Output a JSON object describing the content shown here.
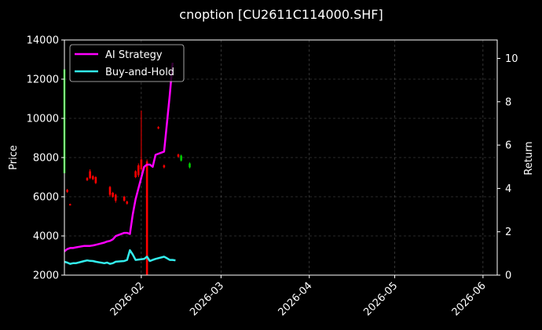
{
  "chart_data": {
    "type": "line",
    "title": "cnoption [CU2611C114000.SHF]",
    "ylabel": "Price",
    "y2label": "Return",
    "ylim": [
      2000,
      14000
    ],
    "y2lim": [
      0,
      10.85
    ],
    "xlim": [
      "2026-01-05",
      "2026-06-06"
    ],
    "grid": true,
    "legend_position": "top-left",
    "x_ticks": [
      "2026-02",
      "2026-03",
      "2026-04",
      "2026-05",
      "2026-06"
    ],
    "y_ticks": [
      2000,
      4000,
      6000,
      8000,
      10000,
      12000,
      14000
    ],
    "y2_ticks": [
      0,
      2,
      4,
      6,
      8,
      10
    ],
    "series": [
      {
        "name": "AI Strategy",
        "color": "#ff00ff",
        "axis": "right",
        "x": [
          "2026-01-05",
          "2026-01-06",
          "2026-01-07",
          "2026-01-08",
          "2026-01-09",
          "2026-01-12",
          "2026-01-13",
          "2026-01-14",
          "2026-01-15",
          "2026-01-16",
          "2026-01-19",
          "2026-01-20",
          "2026-01-21",
          "2026-01-22",
          "2026-01-23",
          "2026-01-26",
          "2026-01-27",
          "2026-01-28",
          "2026-01-29",
          "2026-01-30",
          "2026-02-02",
          "2026-02-03",
          "2026-02-04",
          "2026-02-05",
          "2026-02-06",
          "2026-02-09",
          "2026-02-10",
          "2026-02-11",
          "2026-02-12"
        ],
        "values": [
          1.1,
          1.2,
          1.25,
          1.25,
          1.28,
          1.35,
          1.35,
          1.35,
          1.37,
          1.4,
          1.5,
          1.55,
          1.58,
          1.65,
          1.8,
          1.95,
          1.95,
          1.9,
          2.8,
          3.5,
          5.0,
          5.1,
          5.1,
          5.0,
          5.55,
          5.7,
          7.0,
          8.3,
          9.8
        ]
      },
      {
        "name": "Buy-and-Hold",
        "color": "#33eeee",
        "axis": "right",
        "x": [
          "2026-01-05",
          "2026-01-06",
          "2026-01-07",
          "2026-01-08",
          "2026-01-09",
          "2026-01-12",
          "2026-01-13",
          "2026-01-14",
          "2026-01-15",
          "2026-01-16",
          "2026-01-19",
          "2026-01-20",
          "2026-01-21",
          "2026-01-22",
          "2026-01-23",
          "2026-01-26",
          "2026-01-27",
          "2026-01-28",
          "2026-01-29",
          "2026-01-30",
          "2026-02-02",
          "2026-02-03",
          "2026-02-04",
          "2026-02-05",
          "2026-02-06",
          "2026-02-09",
          "2026-02-10",
          "2026-02-11",
          "2026-02-12",
          "2026-02-13"
        ],
        "values": [
          0.62,
          0.58,
          0.52,
          0.55,
          0.55,
          0.65,
          0.68,
          0.66,
          0.65,
          0.62,
          0.55,
          0.58,
          0.52,
          0.55,
          0.62,
          0.65,
          0.7,
          1.15,
          0.95,
          0.7,
          0.75,
          0.85,
          0.65,
          0.7,
          0.75,
          0.85,
          0.78,
          0.7,
          0.7,
          0.68
        ]
      }
    ],
    "candles": [
      {
        "x": "2026-01-05",
        "open": 12500,
        "close": 7200,
        "high": 12800,
        "low": 7000,
        "color": "#00cc00"
      },
      {
        "x": "2026-01-06",
        "open": 6350,
        "close": 6250,
        "high": 6400,
        "low": 6200,
        "color": "#ff0000"
      },
      {
        "x": "2026-01-07",
        "open": 5620,
        "close": 5580,
        "high": 5650,
        "low": 5550,
        "color": "#ff0000"
      },
      {
        "x": "2026-01-13",
        "open": 6950,
        "close": 6850,
        "high": 7000,
        "low": 6800,
        "color": "#ff0000"
      },
      {
        "x": "2026-01-14",
        "open": 7300,
        "close": 6950,
        "high": 7400,
        "low": 6900,
        "color": "#ff0000"
      },
      {
        "x": "2026-01-15",
        "open": 7050,
        "close": 6900,
        "high": 7100,
        "low": 6850,
        "color": "#ff0000"
      },
      {
        "x": "2026-01-16",
        "open": 7000,
        "close": 6700,
        "high": 7050,
        "low": 6650,
        "color": "#ff0000"
      },
      {
        "x": "2026-01-21",
        "open": 6500,
        "close": 6100,
        "high": 6550,
        "low": 6000,
        "color": "#ff0000"
      },
      {
        "x": "2026-01-22",
        "open": 6200,
        "close": 6000,
        "high": 6250,
        "low": 5950,
        "color": "#ff0000"
      },
      {
        "x": "2026-01-23",
        "open": 6100,
        "close": 5800,
        "high": 6150,
        "low": 5700,
        "color": "#ff0000"
      },
      {
        "x": "2026-01-26",
        "open": 6000,
        "close": 5800,
        "high": 6050,
        "low": 5750,
        "color": "#ff0000"
      },
      {
        "x": "2026-01-27",
        "open": 5750,
        "close": 5650,
        "high": 5800,
        "low": 5600,
        "color": "#ff0000"
      },
      {
        "x": "2026-01-30",
        "open": 7300,
        "close": 7000,
        "high": 7350,
        "low": 6950,
        "color": "#ff0000"
      },
      {
        "x": "2026-01-31",
        "open": 7600,
        "close": 7100,
        "high": 7700,
        "low": 7000,
        "color": "#ff0000"
      },
      {
        "x": "2026-02-01",
        "open": 7900,
        "close": 7400,
        "high": 10400,
        "low": 7300,
        "color": "#ff0000"
      },
      {
        "x": "2026-02-03",
        "open": 7800,
        "close": 2000,
        "high": 7900,
        "low": 2000,
        "color": "#ff0000"
      },
      {
        "x": "2026-02-07",
        "open": 9550,
        "close": 9500,
        "high": 9600,
        "low": 9450,
        "color": "#ff0000"
      },
      {
        "x": "2026-02-09",
        "open": 7600,
        "close": 7500,
        "high": 7650,
        "low": 7450,
        "color": "#ff0000"
      },
      {
        "x": "2026-02-14",
        "open": 8150,
        "close": 8050,
        "high": 8200,
        "low": 8000,
        "color": "#ff0000"
      },
      {
        "x": "2026-02-15",
        "open": 8100,
        "close": 7850,
        "high": 8150,
        "low": 7800,
        "color": "#00cc00"
      },
      {
        "x": "2026-02-18",
        "open": 7700,
        "close": 7500,
        "high": 7750,
        "low": 7450,
        "color": "#00cc00"
      }
    ]
  }
}
